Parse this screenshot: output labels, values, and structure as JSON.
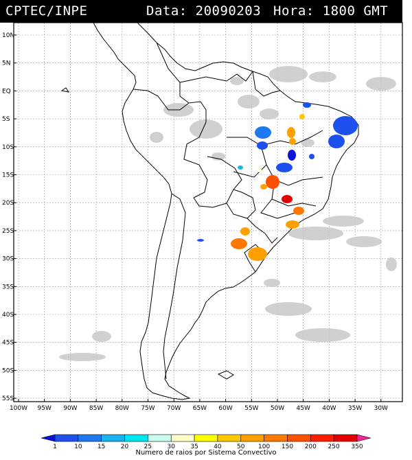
{
  "header": {
    "agency": "CPTEC/INPE",
    "date_text": "Data: 20090203",
    "time_text": "Hora: 1800 GMT"
  },
  "map": {
    "lat_labels": [
      "10N",
      "5N",
      "EQ",
      "5S",
      "10S",
      "15S",
      "20S",
      "25S",
      "30S",
      "35S",
      "40S",
      "45S",
      "50S",
      "55S"
    ],
    "lon_labels": [
      "100W",
      "95W",
      "90W",
      "85W",
      "80W",
      "75W",
      "70W",
      "65W",
      "60W",
      "55W",
      "50W",
      "45W",
      "40W",
      "35W",
      "30W"
    ],
    "colors": {
      "frame": "#000000",
      "grid": "#9a9a9a",
      "border": "#000000",
      "cloud": "#c8c8c8"
    }
  },
  "colorbar": {
    "ticks": [
      "1",
      "10",
      "15",
      "20",
      "25",
      "30",
      "35",
      "40",
      "50",
      "100",
      "150",
      "200",
      "250",
      "350"
    ],
    "colors": [
      "#0a14d8",
      "#1e50f0",
      "#1e78f0",
      "#18b4f0",
      "#00e6f0",
      "#c8fff0",
      "#ffffc8",
      "#ffff00",
      "#ffc800",
      "#ffa000",
      "#ff7800",
      "#ff5000",
      "#ff1e00",
      "#e60000",
      "#f02896"
    ],
    "caption": "Numero de raios por Sistema Convectivo"
  }
}
